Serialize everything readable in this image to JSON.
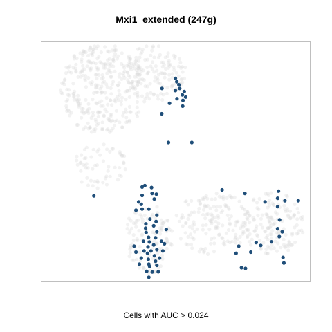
{
  "chart_data": {
    "type": "scatter",
    "title": "Mxi1_extended (247g)",
    "xlabel": "",
    "ylabel": "",
    "caption": "Cells with AUC > 0.024",
    "axes_visible": false,
    "grid": false,
    "colors": {
      "background_cells": "#d9d9d9",
      "highlight_cells": "#1f4e79",
      "frame": "#bfbfbf"
    },
    "series": [
      {
        "role": "background",
        "description": "all cells (light grey, semi-transparent)",
        "regions": [
          {
            "cx": 0.23,
            "cy": 0.2,
            "rx": 0.16,
            "ry": 0.19,
            "n": 330
          },
          {
            "cx": 0.42,
            "cy": 0.13,
            "rx": 0.12,
            "ry": 0.12,
            "n": 140
          },
          {
            "cx": 0.4,
            "cy": 0.82,
            "rx": 0.09,
            "ry": 0.15,
            "n": 110
          },
          {
            "cx": 0.64,
            "cy": 0.76,
            "rx": 0.15,
            "ry": 0.13,
            "n": 160
          },
          {
            "cx": 0.86,
            "cy": 0.76,
            "rx": 0.12,
            "ry": 0.13,
            "n": 150
          },
          {
            "cx": 0.22,
            "cy": 0.52,
            "rx": 0.1,
            "ry": 0.1,
            "n": 60
          }
        ]
      },
      {
        "role": "highlight",
        "description": "cells with AUC above threshold",
        "points": [
          [
            0.504,
            0.168
          ],
          [
            0.499,
            0.154
          ],
          [
            0.512,
            0.181
          ],
          [
            0.515,
            0.196
          ],
          [
            0.499,
            0.205
          ],
          [
            0.532,
            0.209
          ],
          [
            0.525,
            0.223
          ],
          [
            0.537,
            0.232
          ],
          [
            0.505,
            0.239
          ],
          [
            0.527,
            0.246
          ],
          [
            0.449,
            0.196
          ],
          [
            0.477,
            0.258
          ],
          [
            0.526,
            0.27
          ],
          [
            0.448,
            0.302
          ],
          [
            0.473,
            0.422
          ],
          [
            0.56,
            0.422
          ],
          [
            0.195,
            0.645
          ],
          [
            0.375,
            0.608
          ],
          [
            0.375,
            0.643
          ],
          [
            0.362,
            0.67
          ],
          [
            0.385,
            0.602
          ],
          [
            0.41,
            0.61
          ],
          [
            0.412,
            0.635
          ],
          [
            0.42,
            0.658
          ],
          [
            0.372,
            0.68
          ],
          [
            0.428,
            0.638
          ],
          [
            0.375,
            0.7
          ],
          [
            0.352,
            0.705
          ],
          [
            0.4,
            0.7
          ],
          [
            0.404,
            0.742
          ],
          [
            0.389,
            0.762
          ],
          [
            0.388,
            0.78
          ],
          [
            0.39,
            0.798
          ],
          [
            0.399,
            0.818
          ],
          [
            0.402,
            0.838
          ],
          [
            0.397,
            0.858
          ],
          [
            0.395,
            0.885
          ],
          [
            0.398,
            0.91
          ],
          [
            0.403,
            0.94
          ],
          [
            0.413,
            0.963
          ],
          [
            0.392,
            0.96
          ],
          [
            0.4,
            0.985
          ],
          [
            0.427,
            0.752
          ],
          [
            0.418,
            0.77
          ],
          [
            0.43,
            0.795
          ],
          [
            0.425,
            0.82
          ],
          [
            0.418,
            0.85
          ],
          [
            0.43,
            0.87
          ],
          [
            0.421,
            0.895
          ],
          [
            0.425,
            0.918
          ],
          [
            0.4,
            0.93
          ],
          [
            0.408,
            0.875
          ],
          [
            0.38,
            0.835
          ],
          [
            0.382,
            0.875
          ],
          [
            0.372,
            0.905
          ],
          [
            0.365,
            0.93
          ],
          [
            0.345,
            0.855
          ],
          [
            0.352,
            0.88
          ],
          [
            0.435,
            0.962
          ],
          [
            0.43,
            0.935
          ],
          [
            0.44,
            0.905
          ],
          [
            0.447,
            0.835
          ],
          [
            0.452,
            0.875
          ],
          [
            0.465,
            0.785
          ],
          [
            0.458,
            0.845
          ],
          [
            0.43,
            0.726
          ],
          [
            0.673,
            0.62
          ],
          [
            0.758,
            0.635
          ],
          [
            0.883,
            0.625
          ],
          [
            0.88,
            0.655
          ],
          [
            0.833,
            0.67
          ],
          [
            0.88,
            0.69
          ],
          [
            0.907,
            0.665
          ],
          [
            0.957,
            0.665
          ],
          [
            0.887,
            0.745
          ],
          [
            0.88,
            0.782
          ],
          [
            0.886,
            0.815
          ],
          [
            0.857,
            0.837
          ],
          [
            0.897,
            0.795
          ],
          [
            0.8,
            0.84
          ],
          [
            0.817,
            0.852
          ],
          [
            0.735,
            0.855
          ],
          [
            0.725,
            0.885
          ],
          [
            0.78,
            0.88
          ],
          [
            0.76,
            0.948
          ],
          [
            0.745,
            0.945
          ],
          [
            0.9,
            0.902
          ],
          [
            0.903,
            0.925
          ]
        ]
      }
    ]
  }
}
